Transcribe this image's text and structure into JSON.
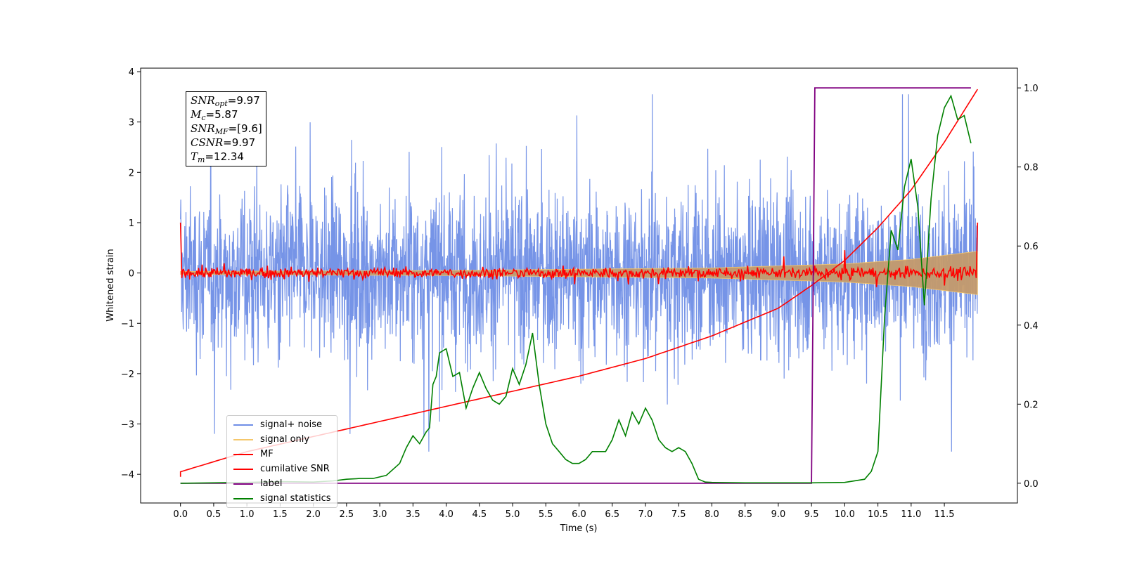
{
  "chart_data": {
    "type": "line",
    "xlabel": "Time (s)",
    "ylabel": "Whitened strain",
    "xlim": [
      -0.6,
      12.6
    ],
    "ylim": [
      -4.57,
      4.07
    ],
    "y2lim": [
      -0.05,
      1.05
    ],
    "x_ticks": [
      "0.0",
      "0.5",
      "1.0",
      "1.5",
      "2.0",
      "2.5",
      "3.0",
      "3.5",
      "4.0",
      "4.5",
      "5.0",
      "5.5",
      "6.0",
      "6.5",
      "7.0",
      "7.5",
      "8.0",
      "8.5",
      "9.0",
      "9.5",
      "10.0",
      "10.5",
      "11.0",
      "11.5"
    ],
    "y_ticks": [
      "4",
      "3",
      "2",
      "1",
      "0",
      "−1",
      "−2",
      "−3",
      "−4"
    ],
    "y2_ticks": [
      "1.0",
      "0.8",
      "0.6",
      "0.4",
      "0.2",
      "0.0"
    ],
    "grid": false,
    "legend_position": "lower-left",
    "annotation_lines": [
      {
        "name": "SNR",
        "sub": "opt",
        "text": "=9.97"
      },
      {
        "name": "M",
        "sub": "c",
        "text": "=5.87"
      },
      {
        "name": "SNR",
        "sub": "MF",
        "text": "=[9.6]"
      },
      {
        "name": "CSNR",
        "sub": "",
        "text": "=9.97"
      },
      {
        "name": "T",
        "sub": "m",
        "text": "=12.34"
      }
    ],
    "series": [
      {
        "name": "signal+ noise",
        "color": "#6f8ee6",
        "axis": "left",
        "description": "noise ~ ±2 whitened strain, spikes to about ±3.5",
        "range": [
          0.0,
          12.0
        ]
      },
      {
        "name": "signal only",
        "color": "#f5c76b",
        "axis": "left",
        "envelope": {
          "x": [
            0.0,
            4.0,
            8.0,
            10.0,
            11.0,
            12.0
          ],
          "amp": [
            0.03,
            0.05,
            0.1,
            0.18,
            0.27,
            0.43
          ]
        }
      },
      {
        "name": "MF",
        "color": "#ff0000",
        "axis": "left",
        "description": "noisy near 0 with spikes to ±0.2, values 1.0 at t=0 and t=12"
      },
      {
        "name": "cumilative SNR",
        "color": "#ff0000",
        "axis": "left",
        "x": [
          0.0,
          1.0,
          2.0,
          3.0,
          4.0,
          5.0,
          6.0,
          7.0,
          8.0,
          9.0,
          9.5,
          10.0,
          10.5,
          11.0,
          11.5,
          12.0
        ],
        "y": [
          -3.95,
          -3.55,
          -3.25,
          -2.95,
          -2.65,
          -2.35,
          -2.05,
          -1.7,
          -1.25,
          -0.7,
          -0.25,
          0.25,
          0.9,
          1.65,
          2.6,
          3.65
        ]
      },
      {
        "name": "label",
        "color": "#800080",
        "axis": "right",
        "x": [
          0.0,
          9.5,
          9.55,
          11.9
        ],
        "y": [
          0.0,
          0.0,
          1.0,
          1.0
        ]
      },
      {
        "name": "signal statistics",
        "color": "#008000",
        "axis": "right",
        "x": [
          0.0,
          0.5,
          1.0,
          1.5,
          2.0,
          2.3,
          2.5,
          2.7,
          2.9,
          3.1,
          3.3,
          3.4,
          3.5,
          3.6,
          3.7,
          3.75,
          3.8,
          3.85,
          3.9,
          4.0,
          4.1,
          4.2,
          4.3,
          4.4,
          4.5,
          4.6,
          4.7,
          4.8,
          4.9,
          5.0,
          5.1,
          5.2,
          5.3,
          5.4,
          5.5,
          5.6,
          5.7,
          5.8,
          5.9,
          6.0,
          6.1,
          6.2,
          6.3,
          6.4,
          6.5,
          6.6,
          6.7,
          6.8,
          6.9,
          7.0,
          7.1,
          7.2,
          7.3,
          7.4,
          7.5,
          7.6,
          7.7,
          7.8,
          7.9,
          8.0,
          8.5,
          9.0,
          9.5,
          10.0,
          10.3,
          10.4,
          10.5,
          10.6,
          10.7,
          10.8,
          10.9,
          11.0,
          11.1,
          11.2,
          11.3,
          11.4,
          11.5,
          11.6,
          11.7,
          11.8,
          11.9
        ],
        "y": [
          0.0,
          0.001,
          0.002,
          0.004,
          0.003,
          0.006,
          0.01,
          0.012,
          0.012,
          0.02,
          0.05,
          0.09,
          0.12,
          0.1,
          0.13,
          0.14,
          0.25,
          0.27,
          0.33,
          0.34,
          0.27,
          0.28,
          0.19,
          0.24,
          0.28,
          0.24,
          0.21,
          0.2,
          0.22,
          0.29,
          0.25,
          0.3,
          0.38,
          0.25,
          0.15,
          0.1,
          0.08,
          0.06,
          0.05,
          0.05,
          0.06,
          0.08,
          0.08,
          0.08,
          0.11,
          0.16,
          0.12,
          0.18,
          0.15,
          0.19,
          0.16,
          0.11,
          0.09,
          0.08,
          0.09,
          0.08,
          0.05,
          0.01,
          0.003,
          0.002,
          0.001,
          0.001,
          0.001,
          0.002,
          0.01,
          0.03,
          0.08,
          0.42,
          0.64,
          0.59,
          0.75,
          0.82,
          0.7,
          0.45,
          0.72,
          0.88,
          0.95,
          0.98,
          0.92,
          0.93,
          0.86
        ]
      }
    ]
  }
}
